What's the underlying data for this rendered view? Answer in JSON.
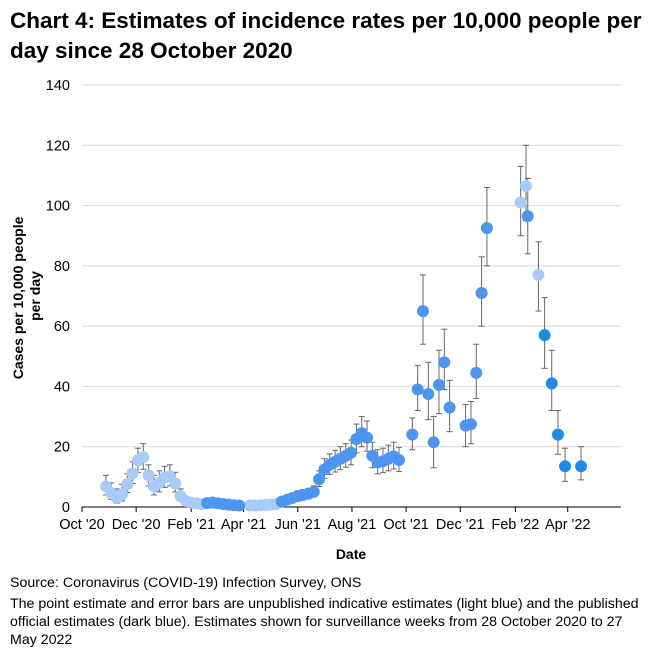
{
  "chart_data": {
    "type": "scatter",
    "title": "Chart 4: Estimates of incidence rates per 10,000 people per day since 28 October 2020",
    "xlabel": "Date",
    "ylabel_lines": [
      "Cases per 10,000 people",
      "per day"
    ],
    "ylim": [
      0,
      140
    ],
    "yticks": [
      "0",
      "20",
      "40",
      "60",
      "80",
      "100",
      "120",
      "140"
    ],
    "xlim": [
      "2020-10-01",
      "2022-05-31"
    ],
    "xticks": [
      {
        "label": "Oct '20",
        "date": "2020-10-01"
      },
      {
        "label": "Dec '20",
        "date": "2020-12-01"
      },
      {
        "label": "Feb '21",
        "date": "2021-02-01"
      },
      {
        "label": "Apr '21",
        "date": "2021-04-01"
      },
      {
        "label": "Jun '21",
        "date": "2021-06-01"
      },
      {
        "label": "Aug '21",
        "date": "2021-08-01"
      },
      {
        "label": "Oct '21",
        "date": "2021-10-01"
      },
      {
        "label": "Dec '21",
        "date": "2021-12-01"
      },
      {
        "label": "Feb '22",
        "date": "2022-02-01"
      },
      {
        "label": "Apr '22",
        "date": "2022-04-01"
      }
    ],
    "grid": "horizontal",
    "legend": "none",
    "colors": {
      "unpublished": "#a8cbf7",
      "published": "#4e95ef",
      "recent": "#1e8ce6",
      "error_bar": "#666666",
      "gridline": "#d9d9d9",
      "axis": "#000000"
    },
    "series": [
      {
        "status": "unpublished",
        "points": [
          {
            "x": "2020-10-28",
            "y": 6.8,
            "lo": 4.0,
            "hi": 10.5
          },
          {
            "x": "2020-11-03",
            "y": 4.6,
            "lo": 2.5,
            "hi": 8.0
          },
          {
            "x": "2020-11-09",
            "y": 3.0,
            "lo": 1.2,
            "hi": 6.0
          },
          {
            "x": "2020-11-15",
            "y": 4.2,
            "lo": 2.0,
            "hi": 7.5
          },
          {
            "x": "2020-11-21",
            "y": 7.6,
            "lo": 4.8,
            "hi": 11.0
          },
          {
            "x": "2020-11-27",
            "y": 11.2,
            "lo": 7.8,
            "hi": 15.0
          },
          {
            "x": "2020-12-03",
            "y": 15.5,
            "lo": 11.5,
            "hi": 19.5
          },
          {
            "x": "2020-12-09",
            "y": 16.6,
            "lo": 12.5,
            "hi": 21.0
          },
          {
            "x": "2020-12-15",
            "y": 10.5,
            "lo": 7.0,
            "hi": 14.0
          },
          {
            "x": "2020-12-21",
            "y": 6.8,
            "lo": 4.0,
            "hi": 10.5
          },
          {
            "x": "2020-12-27",
            "y": 8.0,
            "lo": 5.0,
            "hi": 12.0
          },
          {
            "x": "2021-01-02",
            "y": 9.8,
            "lo": 6.5,
            "hi": 13.5
          },
          {
            "x": "2021-01-08",
            "y": 10.2,
            "lo": 7.0,
            "hi": 14.0
          },
          {
            "x": "2021-01-14",
            "y": 7.8,
            "lo": 5.0,
            "hi": 11.5
          },
          {
            "x": "2021-01-20",
            "y": 3.6,
            "lo": 2.0,
            "hi": 6.0
          },
          {
            "x": "2021-01-26",
            "y": 2.0,
            "lo": 1.0,
            "hi": 3.5
          },
          {
            "x": "2021-02-01",
            "y": 1.4,
            "lo": 0.6,
            "hi": 2.8
          },
          {
            "x": "2021-02-07",
            "y": 1.2,
            "lo": 0.5,
            "hi": 2.5
          },
          {
            "x": "2021-02-13",
            "y": 1.0,
            "lo": 0.4,
            "hi": 2.0
          },
          {
            "x": "2021-04-08",
            "y": 0.5,
            "lo": 0.1,
            "hi": 1.2
          },
          {
            "x": "2021-04-14",
            "y": 0.5,
            "lo": 0.1,
            "hi": 1.2
          },
          {
            "x": "2021-04-20",
            "y": 0.6,
            "lo": 0.2,
            "hi": 1.4
          },
          {
            "x": "2021-04-26",
            "y": 0.7,
            "lo": 0.2,
            "hi": 1.5
          },
          {
            "x": "2021-05-02",
            "y": 0.8,
            "lo": 0.3,
            "hi": 1.6
          },
          {
            "x": "2021-05-08",
            "y": 1.0,
            "lo": 0.4,
            "hi": 2.0
          },
          {
            "x": "2022-02-07",
            "y": 101.0,
            "lo": 90.0,
            "hi": 113.0
          },
          {
            "x": "2022-02-13",
            "y": 106.5,
            "lo": 95.0,
            "hi": 120.0
          },
          {
            "x": "2022-02-27",
            "y": 77.0,
            "lo": 65.0,
            "hi": 88.0
          }
        ]
      },
      {
        "status": "published",
        "points": [
          {
            "x": "2021-02-19",
            "y": 1.3,
            "lo": 0.6,
            "hi": 2.4
          },
          {
            "x": "2021-02-25",
            "y": 1.5,
            "lo": 0.8,
            "hi": 2.6
          },
          {
            "x": "2021-03-03",
            "y": 1.2,
            "lo": 0.6,
            "hi": 2.2
          },
          {
            "x": "2021-03-09",
            "y": 1.0,
            "lo": 0.4,
            "hi": 2.0
          },
          {
            "x": "2021-03-15",
            "y": 0.8,
            "lo": 0.3,
            "hi": 1.6
          },
          {
            "x": "2021-03-21",
            "y": 0.6,
            "lo": 0.2,
            "hi": 1.4
          },
          {
            "x": "2021-03-27",
            "y": 0.5,
            "lo": 0.1,
            "hi": 1.2
          },
          {
            "x": "2021-05-14",
            "y": 1.8,
            "lo": 1.0,
            "hi": 3.0
          },
          {
            "x": "2021-05-20",
            "y": 2.4,
            "lo": 1.4,
            "hi": 3.8
          },
          {
            "x": "2021-05-26",
            "y": 3.0,
            "lo": 1.8,
            "hi": 4.6
          },
          {
            "x": "2021-06-01",
            "y": 3.6,
            "lo": 2.2,
            "hi": 5.4
          },
          {
            "x": "2021-06-07",
            "y": 4.0,
            "lo": 2.6,
            "hi": 5.8
          },
          {
            "x": "2021-06-13",
            "y": 4.4,
            "lo": 3.0,
            "hi": 6.2
          },
          {
            "x": "2021-06-19",
            "y": 5.0,
            "lo": 3.4,
            "hi": 7.0
          },
          {
            "x": "2021-06-25",
            "y": 9.2,
            "lo": 6.8,
            "hi": 12.0
          },
          {
            "x": "2021-07-01",
            "y": 12.5,
            "lo": 9.5,
            "hi": 16.0
          },
          {
            "x": "2021-07-07",
            "y": 14.0,
            "lo": 10.8,
            "hi": 17.6
          },
          {
            "x": "2021-07-13",
            "y": 15.0,
            "lo": 11.6,
            "hi": 18.8
          },
          {
            "x": "2021-07-19",
            "y": 16.0,
            "lo": 12.4,
            "hi": 20.0
          },
          {
            "x": "2021-07-25",
            "y": 17.0,
            "lo": 13.2,
            "hi": 21.0
          },
          {
            "x": "2021-07-31",
            "y": 18.0,
            "lo": 14.0,
            "hi": 22.2
          },
          {
            "x": "2021-08-06",
            "y": 22.5,
            "lo": 18.0,
            "hi": 27.5
          },
          {
            "x": "2021-08-12",
            "y": 24.5,
            "lo": 20.0,
            "hi": 30.0
          },
          {
            "x": "2021-08-18",
            "y": 23.0,
            "lo": 18.5,
            "hi": 28.5
          },
          {
            "x": "2021-08-24",
            "y": 17.0,
            "lo": 13.0,
            "hi": 21.5
          },
          {
            "x": "2021-08-30",
            "y": 14.8,
            "lo": 11.0,
            "hi": 19.0
          },
          {
            "x": "2021-09-05",
            "y": 15.2,
            "lo": 11.4,
            "hi": 19.5
          },
          {
            "x": "2021-09-11",
            "y": 16.0,
            "lo": 12.0,
            "hi": 20.5
          },
          {
            "x": "2021-09-17",
            "y": 16.8,
            "lo": 12.6,
            "hi": 21.5
          },
          {
            "x": "2021-09-23",
            "y": 15.6,
            "lo": 11.8,
            "hi": 19.8
          },
          {
            "x": "2021-10-08",
            "y": 24.0,
            "lo": 19.0,
            "hi": 29.5
          },
          {
            "x": "2021-10-14",
            "y": 39.0,
            "lo": 32.0,
            "hi": 47.0
          },
          {
            "x": "2021-10-20",
            "y": 65.0,
            "lo": 54.0,
            "hi": 77.0
          },
          {
            "x": "2021-10-26",
            "y": 37.5,
            "lo": 29.0,
            "hi": 48.0
          },
          {
            "x": "2021-11-01",
            "y": 21.5,
            "lo": 13.0,
            "hi": 30.0
          },
          {
            "x": "2021-11-07",
            "y": 40.5,
            "lo": 31.0,
            "hi": 52.0
          },
          {
            "x": "2021-11-13",
            "y": 48.0,
            "lo": 39.0,
            "hi": 59.0
          },
          {
            "x": "2021-11-19",
            "y": 33.0,
            "lo": 25.0,
            "hi": 42.0
          },
          {
            "x": "2021-12-07",
            "y": 27.0,
            "lo": 20.0,
            "hi": 34.0
          },
          {
            "x": "2021-12-13",
            "y": 27.5,
            "lo": 21.0,
            "hi": 35.0
          },
          {
            "x": "2021-12-19",
            "y": 44.5,
            "lo": 36.0,
            "hi": 54.0
          },
          {
            "x": "2021-12-25",
            "y": 71.0,
            "lo": 60.0,
            "hi": 83.0
          },
          {
            "x": "2021-12-31",
            "y": 92.5,
            "lo": 80.0,
            "hi": 106.0
          },
          {
            "x": "2022-02-15",
            "y": 96.5,
            "lo": 84.0,
            "hi": 109.0
          }
        ]
      },
      {
        "status": "recent",
        "points": [
          {
            "x": "2022-03-06",
            "y": 57.0,
            "lo": 46.0,
            "hi": 69.5
          },
          {
            "x": "2022-03-14",
            "y": 41.0,
            "lo": 32.0,
            "hi": 52.0
          },
          {
            "x": "2022-03-21",
            "y": 24.0,
            "lo": 17.5,
            "hi": 32.0
          },
          {
            "x": "2022-03-29",
            "y": 13.5,
            "lo": 8.5,
            "hi": 19.5
          },
          {
            "x": "2022-04-16",
            "y": 13.5,
            "lo": 9.0,
            "hi": 20.0
          }
        ]
      }
    ]
  },
  "footer": {
    "source": "Source: Coronavirus (COVID-19) Infection Survey, ONS",
    "note": "The point estimate and error bars are unpublished indicative estimates (light blue) and the published official estimates (dark blue). Estimates shown for surveillance weeks from 28 October 2020 to 27 May 2022"
  }
}
